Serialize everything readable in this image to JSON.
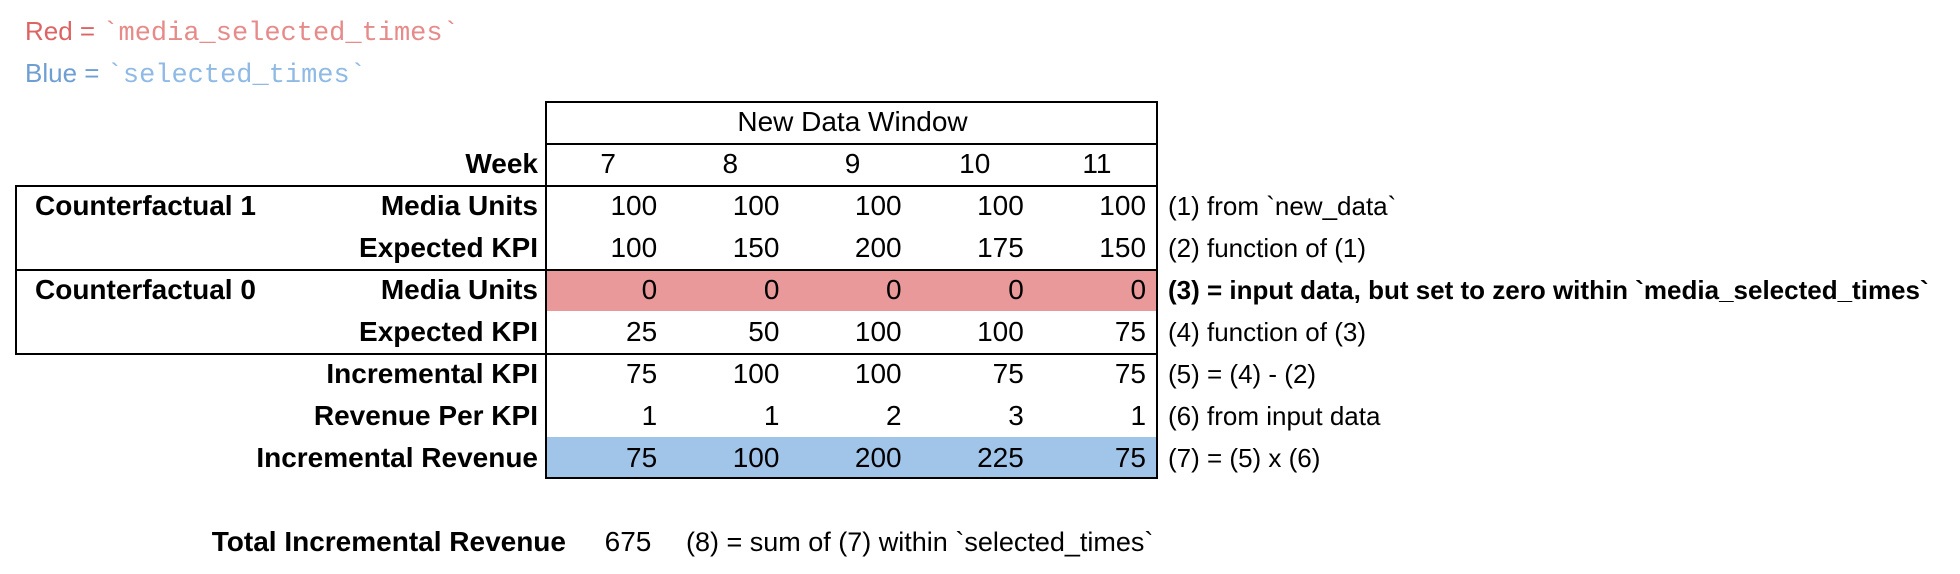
{
  "legend": {
    "red": {
      "label": "Red = ",
      "code": "`media_selected_times`"
    },
    "blue": {
      "label": "Blue = ",
      "code": "`selected_times`"
    }
  },
  "colors": {
    "red_row_fill": "#EA999A",
    "blue_row_fill": "#A0C5E8",
    "legend_red_text": "#DD6464",
    "legend_red_code_text": "#E68A8A",
    "legend_blue_text": "#6F9ED3",
    "legend_blue_code_text": "#8FBAE6",
    "border": "#000000"
  },
  "table": {
    "header": "New Data Window",
    "week_label": "Week",
    "weeks": [
      "7",
      "8",
      "9",
      "10",
      "11"
    ],
    "groups": {
      "counterfactual1": "Counterfactual 1",
      "counterfactual0": "Counterfactual 0"
    },
    "rows": [
      {
        "label": "Media Units",
        "values": [
          "100",
          "100",
          "100",
          "100",
          "100"
        ],
        "annotation": "(1) from `new_data`",
        "highlight": "none"
      },
      {
        "label": "Expected KPI",
        "values": [
          "100",
          "150",
          "200",
          "175",
          "150"
        ],
        "annotation": "(2) function of (1)",
        "highlight": "none"
      },
      {
        "label": "Media Units",
        "values": [
          "0",
          "0",
          "0",
          "0",
          "0"
        ],
        "annotation": "(3) = input data, but set to zero within `media_selected_times`",
        "highlight": "red"
      },
      {
        "label": "Expected KPI",
        "values": [
          "25",
          "50",
          "100",
          "100",
          "75"
        ],
        "annotation": "(4) function of (3)",
        "highlight": "none"
      },
      {
        "label": "Incremental KPI",
        "values": [
          "75",
          "100",
          "100",
          "75",
          "75"
        ],
        "annotation": "(5) = (4) - (2)",
        "highlight": "none"
      },
      {
        "label": "Revenue Per KPI",
        "values": [
          "1",
          "1",
          "2",
          "3",
          "1"
        ],
        "annotation": "(6) from input data",
        "highlight": "none"
      },
      {
        "label": "Incremental Revenue",
        "values": [
          "75",
          "100",
          "200",
          "225",
          "75"
        ],
        "annotation": "(7) = (5) x (6)",
        "highlight": "blue"
      }
    ]
  },
  "total": {
    "label": "Total Incremental Revenue",
    "value": "675",
    "annotation": "(8) = sum of (7) within `selected_times`"
  }
}
